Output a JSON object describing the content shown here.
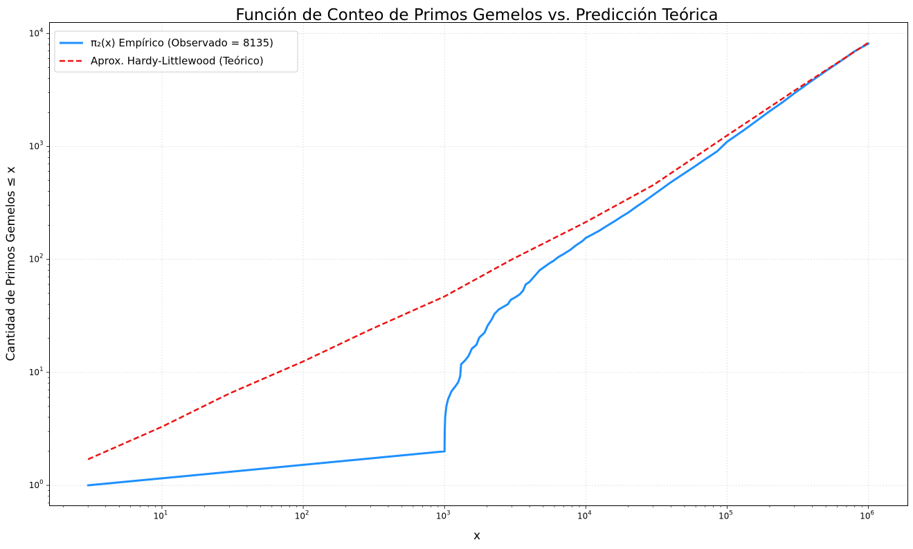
{
  "chart_data": {
    "type": "line",
    "title": "Función de Conteo de Primos Gemelos vs. Predicción Teórica",
    "xlabel": "x",
    "ylabel": "Cantidad de Primos Gemelos ≤ x",
    "xscale": "log",
    "yscale": "log",
    "xlim": [
      1.6,
      1900000
    ],
    "ylim": [
      0.66,
      12500
    ],
    "grid": true,
    "legend_position": "top-left",
    "x_ticks": [
      {
        "base": "10",
        "exp": "1",
        "value": 10
      },
      {
        "base": "10",
        "exp": "2",
        "value": 100
      },
      {
        "base": "10",
        "exp": "3",
        "value": 1000
      },
      {
        "base": "10",
        "exp": "4",
        "value": 10000
      },
      {
        "base": "10",
        "exp": "5",
        "value": 100000
      },
      {
        "base": "10",
        "exp": "6",
        "value": 1000000
      }
    ],
    "y_ticks": [
      {
        "base": "10",
        "exp": "0",
        "value": 1
      },
      {
        "base": "10",
        "exp": "1",
        "value": 10
      },
      {
        "base": "10",
        "exp": "2",
        "value": 100
      },
      {
        "base": "10",
        "exp": "3",
        "value": 1000
      },
      {
        "base": "10",
        "exp": "4",
        "value": 10000
      }
    ],
    "series": [
      {
        "name": "π₂(x) Empírico (Observado = 8135)",
        "color": "#1e90ff",
        "style": "solid",
        "points": [
          [
            3,
            1
          ],
          [
            1000,
            2
          ],
          [
            1003,
            3
          ],
          [
            1010,
            4
          ],
          [
            1030,
            5
          ],
          [
            1060,
            5.8
          ],
          [
            1120,
            6.8
          ],
          [
            1200,
            7.6
          ],
          [
            1250,
            8.2
          ],
          [
            1290,
            9.2
          ],
          [
            1310,
            11.8
          ],
          [
            1400,
            12.8
          ],
          [
            1480,
            14
          ],
          [
            1560,
            16.2
          ],
          [
            1680,
            17.5
          ],
          [
            1760,
            20.3
          ],
          [
            1920,
            22.5
          ],
          [
            2020,
            26
          ],
          [
            2160,
            29.5
          ],
          [
            2260,
            33
          ],
          [
            2420,
            36
          ],
          [
            2600,
            38
          ],
          [
            2800,
            40
          ],
          [
            2950,
            44
          ],
          [
            3150,
            46
          ],
          [
            3400,
            49
          ],
          [
            3600,
            53
          ],
          [
            3750,
            60
          ],
          [
            3980,
            63
          ],
          [
            4200,
            68
          ],
          [
            4500,
            75
          ],
          [
            4700,
            80
          ],
          [
            5100,
            86
          ],
          [
            5500,
            92
          ],
          [
            5900,
            97
          ],
          [
            6400,
            105
          ],
          [
            7000,
            112
          ],
          [
            7800,
            122
          ],
          [
            8500,
            133
          ],
          [
            9500,
            146
          ],
          [
            10000,
            155
          ],
          [
            11000,
            165
          ],
          [
            12500,
            180
          ],
          [
            14000,
            197
          ],
          [
            16000,
            218
          ],
          [
            18000,
            240
          ],
          [
            20000,
            260
          ],
          [
            23000,
            295
          ],
          [
            26000,
            327
          ],
          [
            30000,
            372
          ],
          [
            35000,
            427
          ],
          [
            40000,
            482
          ],
          [
            50000,
            580
          ],
          [
            60000,
            675
          ],
          [
            70000,
            770
          ],
          [
            85000,
            905
          ],
          [
            100000,
            1100
          ],
          [
            130000,
            1380
          ],
          [
            160000,
            1670
          ],
          [
            200000,
            2050
          ],
          [
            250000,
            2490
          ],
          [
            300000,
            2960
          ],
          [
            400000,
            3830
          ],
          [
            500000,
            4650
          ],
          [
            600000,
            5420
          ],
          [
            700000,
            6180
          ],
          [
            800000,
            6960
          ],
          [
            900000,
            7550
          ],
          [
            1000000,
            8135
          ]
        ]
      },
      {
        "name": "Aprox. Hardy-Littlewood (Teórico)",
        "color": "#ee1111",
        "style": "dashed",
        "points": [
          [
            3,
            1.7
          ],
          [
            10,
            3.3
          ],
          [
            30,
            6.5
          ],
          [
            100,
            12.5
          ],
          [
            300,
            24
          ],
          [
            1000,
            47
          ],
          [
            3000,
            100
          ],
          [
            10000,
            214
          ],
          [
            30000,
            455
          ],
          [
            100000,
            1250
          ],
          [
            300000,
            3120
          ],
          [
            1000000,
            8300
          ]
        ]
      }
    ]
  }
}
